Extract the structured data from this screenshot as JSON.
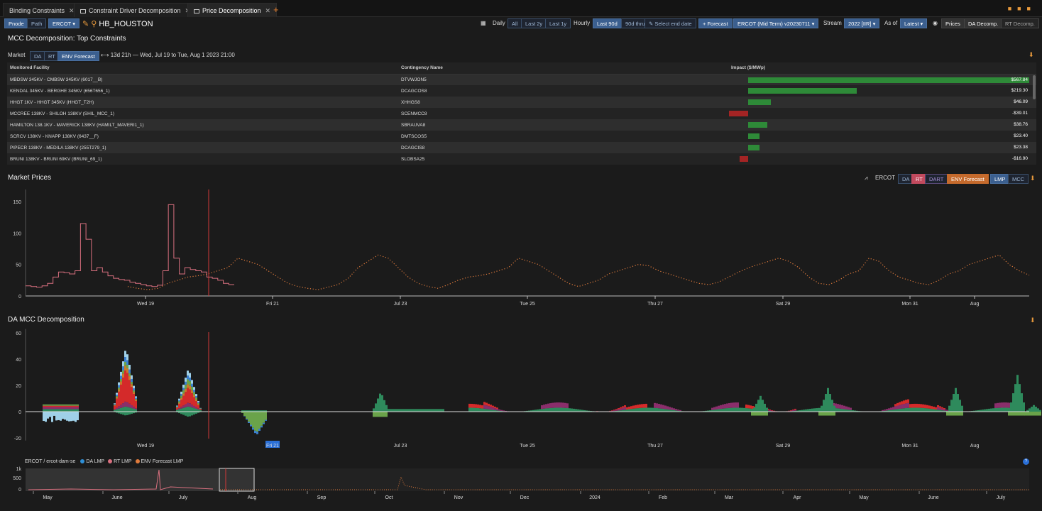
{
  "tabs": [
    {
      "label": "Binding Constraints",
      "left": 4
    },
    {
      "label": "Constraint Driver Decomposition",
      "left": 104
    },
    {
      "label": "Price Decomposition",
      "left": 264,
      "active": true
    }
  ],
  "toolbar": {
    "pnode": "Pnode",
    "path": "Path",
    "iso": "ERCOT",
    "location": "HB_HOUSTON",
    "daily": "Daily",
    "all": "All",
    "last2y": "Last 2y",
    "last1y": "Last 1y",
    "hourly": "Hourly",
    "last90d": "Last 90d",
    "thru": "90d thru",
    "select_end": "Select end date",
    "forecast": "+ Forecast",
    "scenario": "ERCOT (Mid Term) v20230711",
    "stream_label": "Stream",
    "stream": "2022 [IIR]",
    "asof_label": "As of",
    "asof": "Latest",
    "prices": "Prices",
    "da_decomp": "DA Decomp.",
    "rt_decomp": "RT Decomp."
  },
  "constraints": {
    "title": "MCC Decomposition: Top Constraints",
    "market_label": "Market",
    "markets": [
      "DA",
      "RT",
      "ENV Forecast"
    ],
    "date_range": "13d 21h — Wed, Jul 19 to Tue, Aug 1 2023 21:00",
    "columns": [
      "Monitored Facility",
      "Contingency Name",
      "Impact ($/MWp)"
    ],
    "rows": [
      {
        "facility": "MBDSW 345KV - CMBSW 345KV (6017__B)",
        "contingency": "DTVWJON5",
        "impact": 567.84,
        "label": "$567.84"
      },
      {
        "facility": "KENDAL 345KV - BERGHE 345KV (656T656_1)",
        "contingency": "DCAGCOS8",
        "impact": 219.3,
        "label": "$219.30"
      },
      {
        "facility": "HHGT 1KV - HHGT 345KV (HHGT_T2H)",
        "contingency": "XHHGS8",
        "impact": 46.09,
        "label": "$46.09"
      },
      {
        "facility": "MCCREE 138KV - SHILOH 138KV (SHIL_MCC_1)",
        "contingency": "SCENMCC8",
        "impact": -39.01,
        "label": "-$39.01"
      },
      {
        "facility": "HAMILTON 138.1KV - MAVERICK 138KV (HAMILT_MAVERI1_1)",
        "contingency": "SBRAUVA8",
        "impact": 38.76,
        "label": "$38.76"
      },
      {
        "facility": "SCRCV 138KV - KNAPP 138KV (6437__F)",
        "contingency": "DMTSCOS5",
        "impact": 23.4,
        "label": "$23.40"
      },
      {
        "facility": "PIPECR 138KV - MEDILA 138KV (255T279_1)",
        "contingency": "DCAGCIS8",
        "impact": 23.38,
        "label": "$23.38"
      },
      {
        "facility": "BRUNI 138KV - BRUNI 69KV (BRUNI_69_1)",
        "contingency": "SLOBSA25",
        "impact": -16.9,
        "label": "-$16.90"
      }
    ]
  },
  "market_prices": {
    "title": "Market Prices",
    "iso": "ERCOT",
    "series_buttons": [
      "DA",
      "RT",
      "DART",
      "ENV Forecast"
    ],
    "type_buttons": [
      "LMP",
      "MCC"
    ],
    "y_ticks": [
      0,
      50,
      100,
      150
    ],
    "x_ticks": [
      "Wed 19",
      "Fri 21",
      "Jul 23",
      "Tue 25",
      "Thu 27",
      "Sat 29",
      "Mon 31",
      "Aug"
    ],
    "colors": {
      "rt": "#d9707f",
      "forecast": "#e07b3c",
      "marker": "#d13a3a"
    }
  },
  "chart_data": {
    "type": "line",
    "title": "Market Prices",
    "ylim": [
      0,
      160
    ],
    "series": [
      {
        "name": "RT",
        "values": [
          16,
          15,
          14,
          16,
          20,
          30,
          38,
          37,
          35,
          40,
          115,
          90,
          40,
          45,
          38,
          32,
          28,
          26,
          25,
          22,
          20,
          18,
          16,
          15,
          17,
          40,
          145,
          60,
          35,
          45,
          42,
          40,
          38,
          30,
          28,
          25,
          20,
          18
        ]
      },
      {
        "name": "ENV Forecast",
        "values": [
          15,
          12,
          10,
          12,
          20,
          25,
          30,
          32,
          35,
          40,
          45,
          60,
          55,
          50,
          40,
          30,
          20,
          15,
          12,
          10,
          14,
          18,
          28,
          45,
          55,
          65,
          60,
          45,
          30,
          20,
          15,
          12,
          18,
          25,
          30,
          32,
          35,
          40,
          45,
          60,
          55,
          50,
          40,
          30,
          20,
          15,
          20,
          25,
          35,
          40,
          45,
          50,
          48,
          40,
          35,
          30,
          25,
          20,
          18,
          22,
          30,
          38,
          45,
          50,
          55,
          60,
          55,
          45,
          30,
          20,
          18,
          25,
          35,
          40,
          60,
          55,
          40,
          30,
          25,
          20,
          18,
          25,
          35,
          40,
          50,
          55,
          60,
          65,
          50,
          40,
          33
        ]
      }
    ]
  },
  "da_mcc": {
    "title": "DA MCC Decomposition",
    "y_ticks": [
      -20,
      0,
      20,
      40,
      60
    ],
    "x_ticks": [
      "Wed 19",
      "Fri 21",
      "Jul 23",
      "Tue 25",
      "Thu 27",
      "Sat 29",
      "Mon 31",
      "Aug"
    ],
    "highlight_tick": "Fri 21"
  },
  "navigator": {
    "label": "ERCOT / ercot-dam-se",
    "legend": [
      {
        "name": "DA LMP",
        "color": "#2f8fd6"
      },
      {
        "name": "RT LMP",
        "color": "#d9707f"
      },
      {
        "name": "ENV Forecast LMP",
        "color": "#e07b3c"
      }
    ],
    "y_ticks": [
      "1k",
      "500",
      "0"
    ],
    "x_ticks": [
      "May",
      "June",
      "July",
      "Aug",
      "Sep",
      "Oct",
      "Nov",
      "Dec",
      "2024",
      "Feb",
      "Mar",
      "Apr",
      "May",
      "June",
      "July"
    ]
  }
}
